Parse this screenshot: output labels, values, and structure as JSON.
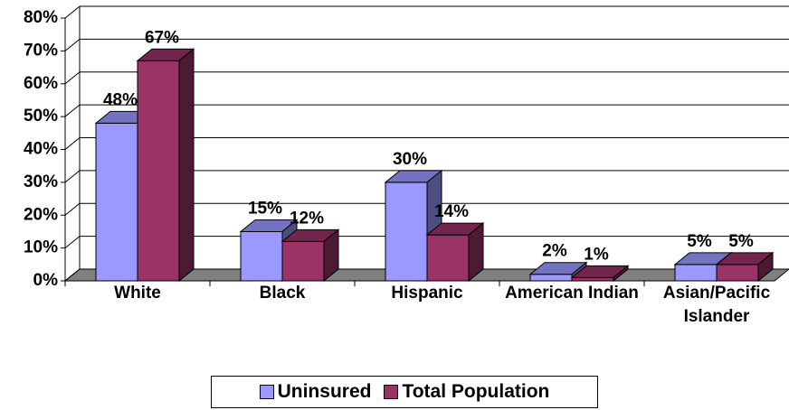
{
  "chart_data": {
    "type": "bar3d",
    "categories": [
      "White",
      "Black",
      "Hispanic",
      "American Indian",
      "Asian/Pacific Islander"
    ],
    "series": [
      {
        "name": "Uninsured",
        "color": "#9999ff",
        "values": [
          48,
          15,
          30,
          2,
          5
        ],
        "value_labels": [
          "48%",
          "15%",
          "30%",
          "2%",
          "5%"
        ]
      },
      {
        "name": "Total Population",
        "color": "#993366",
        "values": [
          67,
          12,
          14,
          1,
          5
        ],
        "value_labels": [
          "67%",
          "12%",
          "14%",
          "1%",
          "5%"
        ]
      }
    ],
    "ylim": [
      0,
      80
    ],
    "yticks": [
      {
        "value": 0,
        "label": "0%"
      },
      {
        "value": 10,
        "label": "10%"
      },
      {
        "value": 20,
        "label": "20%"
      },
      {
        "value": 30,
        "label": "30%"
      },
      {
        "value": 40,
        "label": "40%"
      },
      {
        "value": 50,
        "label": "50%"
      },
      {
        "value": 60,
        "label": "60%"
      },
      {
        "value": 70,
        "label": "70%"
      },
      {
        "value": 80,
        "label": "80%"
      }
    ],
    "grid": true,
    "legend": "bottom"
  }
}
